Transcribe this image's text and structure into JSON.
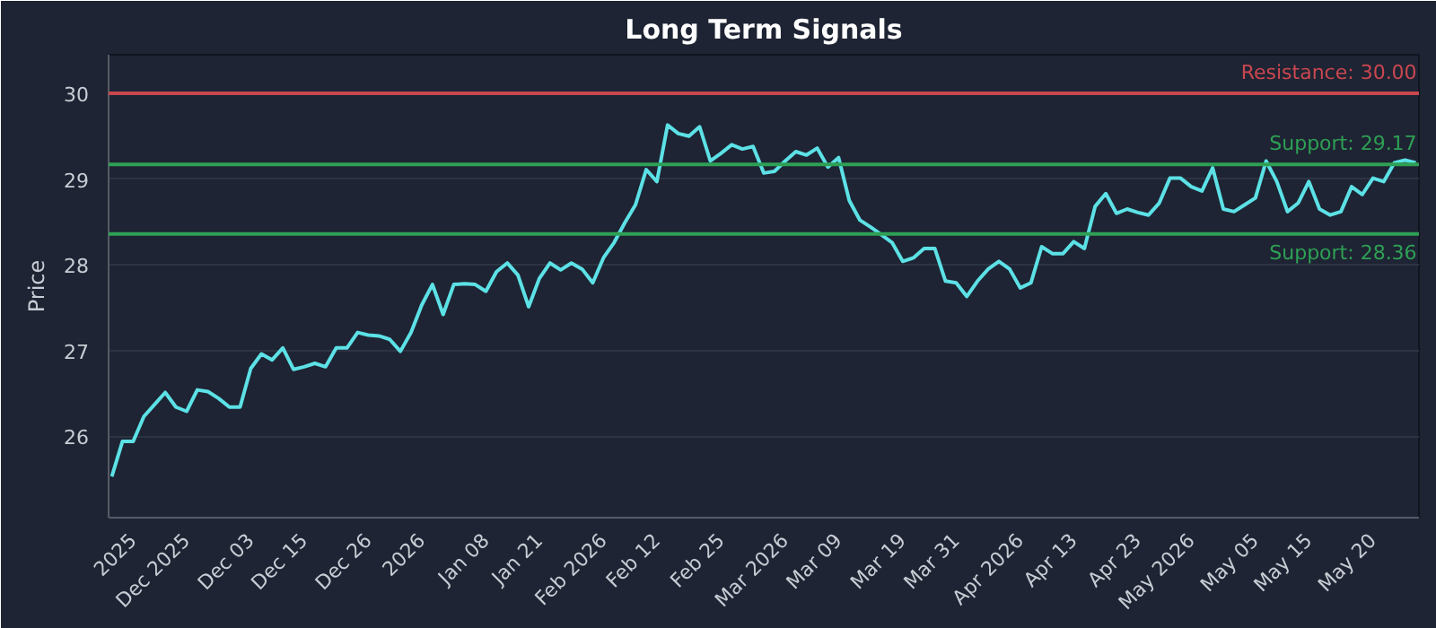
{
  "chart_data": {
    "type": "line",
    "title": "Long Term Signals",
    "ylabel": "Price",
    "categories": [
      null,
      null,
      "2025",
      null,
      null,
      null,
      null,
      "Dec 2025",
      null,
      null,
      null,
      null,
      null,
      "Dec 03",
      null,
      null,
      null,
      null,
      "Dec 15",
      null,
      null,
      null,
      null,
      null,
      "Dec 26",
      null,
      null,
      null,
      null,
      "2026",
      null,
      null,
      null,
      null,
      null,
      "Jan 08",
      null,
      null,
      null,
      null,
      "Jan 21",
      null,
      null,
      null,
      null,
      null,
      "Feb 2026",
      null,
      null,
      null,
      null,
      "Feb 12",
      null,
      null,
      null,
      null,
      null,
      "Feb 25",
      null,
      null,
      null,
      null,
      null,
      "Mar 2026",
      null,
      null,
      null,
      null,
      "Mar 09",
      null,
      null,
      null,
      null,
      null,
      "Mar 19",
      null,
      null,
      null,
      null,
      "Mar 31",
      null,
      null,
      null,
      null,
      null,
      "Apr 2026",
      null,
      null,
      null,
      null,
      "Apr 13",
      null,
      null,
      null,
      null,
      null,
      "Apr 23",
      null,
      null,
      null,
      null,
      "May 2026",
      null,
      null,
      null,
      null,
      null,
      "May 05",
      null,
      null,
      null,
      null,
      "May 15",
      null,
      null,
      null,
      null,
      null,
      "May 20",
      null,
      null,
      null,
      null
    ],
    "series": [
      {
        "color": "#5ce1e6",
        "values": [
          25.53,
          25.94,
          25.94,
          26.23,
          26.37,
          26.51,
          26.34,
          26.29,
          26.54,
          26.52,
          26.44,
          26.34,
          26.34,
          26.79,
          26.96,
          26.89,
          27.03,
          26.78,
          26.81,
          26.85,
          26.81,
          27.03,
          27.03,
          27.21,
          27.18,
          27.17,
          27.13,
          26.99,
          27.21,
          27.53,
          27.77,
          27.42,
          27.77,
          27.78,
          27.77,
          27.69,
          27.92,
          28.02,
          27.88,
          27.51,
          27.84,
          28.02,
          27.94,
          28.02,
          27.95,
          27.79,
          28.08,
          28.26,
          28.49,
          28.7,
          29.11,
          28.97,
          29.63,
          29.53,
          29.5,
          29.61,
          29.21,
          29.3,
          29.4,
          29.35,
          29.38,
          29.07,
          29.09,
          29.21,
          29.32,
          29.28,
          29.36,
          29.14,
          29.25,
          28.75,
          28.52,
          28.44,
          28.35,
          28.26,
          28.04,
          28.08,
          28.19,
          28.19,
          27.81,
          27.79,
          27.63,
          27.81,
          27.95,
          28.04,
          27.95,
          27.73,
          27.79,
          28.21,
          28.13,
          28.13,
          28.27,
          28.19,
          28.68,
          28.83,
          28.6,
          28.65,
          28.61,
          28.58,
          28.72,
          29.01,
          29.01,
          28.91,
          28.86,
          29.13,
          28.65,
          28.62,
          28.7,
          28.78,
          29.21,
          28.97,
          28.62,
          28.72,
          28.97,
          28.65,
          28.58,
          28.62,
          28.91,
          28.82,
          29.01,
          28.97,
          29.19,
          29.22,
          29.19
        ]
      }
    ],
    "ylim": [
      25.05,
      30.45
    ],
    "yticks": [
      26,
      27,
      28,
      29,
      30
    ],
    "grid": "y",
    "marker": "none",
    "line_style": "solid",
    "ref_lines": [
      {
        "axis": "y",
        "value": 30.0,
        "label": "Resistance: 30.00",
        "color": "#c9474f"
      },
      {
        "axis": "y",
        "value": 29.17,
        "label": "Support: 29.17",
        "color": "#2ea055"
      },
      {
        "axis": "y",
        "value": 28.36,
        "label": "Support: 28.36",
        "color": "#2ea055"
      }
    ]
  }
}
